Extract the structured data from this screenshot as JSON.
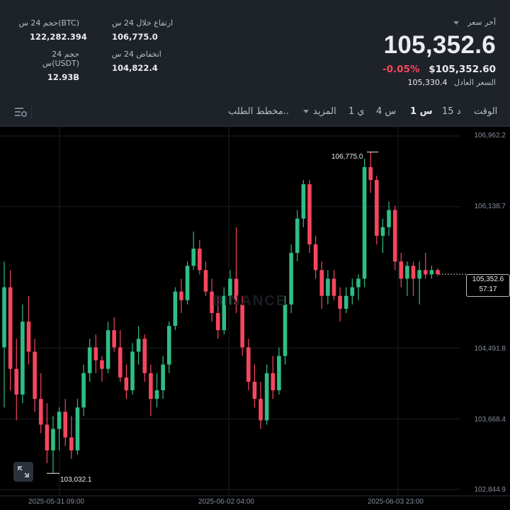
{
  "header": {
    "stats": [
      {
        "id": "high",
        "label": "ارتفاع خلال 24 س",
        "value": "106,775.0"
      },
      {
        "id": "vol_btc",
        "label": "حجم 24 س(BTC)",
        "value": "122,282.394"
      },
      {
        "id": "low",
        "label": "انخفاض 24 س",
        "value": "104,822.4"
      },
      {
        "id": "vol_usdt",
        "label": "حجم 24 س(USDT)",
        "value": "12.93B"
      }
    ],
    "last_price_label": "آخر سعر",
    "last_price": "105,352.6",
    "change_pct": "-0.05%",
    "usd_price": "$105,352.60",
    "fair_label": "السعر العادل",
    "fair_price": "105,330.4"
  },
  "tabs": {
    "time": "الوقت",
    "m15": "15 د",
    "h1": "1 س",
    "h4": "4 س",
    "d1": "1 ي",
    "more": "المزيد",
    "depth": "مخطط الطلب.."
  },
  "colors": {
    "up": "#2ebd85",
    "down": "#f6465d",
    "bg": "#000000",
    "panel": "#1e2329",
    "grid": "#1c1f24"
  },
  "chart_data": {
    "type": "candlestick",
    "y_ticks": [
      "106,962.2",
      "106,138.7",
      "104,491.8",
      "103,668.4",
      "102,844.9"
    ],
    "y_tick_values": [
      106962.2,
      106138.7,
      104491.8,
      103668.4,
      102844.9
    ],
    "x_ticks": [
      "2025-05-31 09:00",
      "2025-06-02 04:00",
      "2025-06-03 23:00"
    ],
    "current_price": "105,352.6",
    "countdown": "57:17",
    "high_marker": "106,775.0",
    "low_marker": "103,032.1",
    "watermark": "BINANCE",
    "candles": [
      {
        "o": 104500,
        "h": 105500,
        "l": 103800,
        "c": 105200
      },
      {
        "o": 105200,
        "h": 105400,
        "l": 104000,
        "c": 104250
      },
      {
        "o": 104250,
        "h": 104600,
        "l": 103650,
        "c": 103950
      },
      {
        "o": 103950,
        "h": 105000,
        "l": 103850,
        "c": 104800
      },
      {
        "o": 104800,
        "h": 105100,
        "l": 104300,
        "c": 104450
      },
      {
        "o": 104450,
        "h": 104600,
        "l": 103750,
        "c": 103900
      },
      {
        "o": 103900,
        "h": 104200,
        "l": 103500,
        "c": 103600
      },
      {
        "o": 103600,
        "h": 103850,
        "l": 103150,
        "c": 103300
      },
      {
        "o": 103300,
        "h": 103700,
        "l": 103032,
        "c": 103550
      },
      {
        "o": 103550,
        "h": 103800,
        "l": 103300,
        "c": 103750
      },
      {
        "o": 103750,
        "h": 103900,
        "l": 103350,
        "c": 103450
      },
      {
        "o": 103450,
        "h": 103700,
        "l": 103200,
        "c": 103300
      },
      {
        "o": 103300,
        "h": 103900,
        "l": 103250,
        "c": 103800
      },
      {
        "o": 103800,
        "h": 104300,
        "l": 103700,
        "c": 104200
      },
      {
        "o": 104200,
        "h": 104600,
        "l": 104100,
        "c": 104500
      },
      {
        "o": 104500,
        "h": 104650,
        "l": 104200,
        "c": 104350
      },
      {
        "o": 104350,
        "h": 104400,
        "l": 104100,
        "c": 104250
      },
      {
        "o": 104250,
        "h": 104800,
        "l": 104200,
        "c": 104700
      },
      {
        "o": 104700,
        "h": 104850,
        "l": 104450,
        "c": 104500
      },
      {
        "o": 104500,
        "h": 104700,
        "l": 104100,
        "c": 104150
      },
      {
        "o": 104150,
        "h": 104300,
        "l": 103900,
        "c": 104000
      },
      {
        "o": 104000,
        "h": 104550,
        "l": 103950,
        "c": 104450
      },
      {
        "o": 104450,
        "h": 104750,
        "l": 104300,
        "c": 104600
      },
      {
        "o": 104600,
        "h": 104650,
        "l": 104100,
        "c": 104200
      },
      {
        "o": 104200,
        "h": 104300,
        "l": 103700,
        "c": 103900
      },
      {
        "o": 103900,
        "h": 104200,
        "l": 103800,
        "c": 104000
      },
      {
        "o": 104000,
        "h": 104400,
        "l": 103900,
        "c": 104300
      },
      {
        "o": 104300,
        "h": 104800,
        "l": 104200,
        "c": 104750
      },
      {
        "o": 104750,
        "h": 105200,
        "l": 104700,
        "c": 105150
      },
      {
        "o": 105150,
        "h": 105300,
        "l": 104900,
        "c": 105050
      },
      {
        "o": 105050,
        "h": 105500,
        "l": 105000,
        "c": 105450
      },
      {
        "o": 105450,
        "h": 105850,
        "l": 105400,
        "c": 105650
      },
      {
        "o": 105650,
        "h": 105750,
        "l": 105350,
        "c": 105400
      },
      {
        "o": 105400,
        "h": 105500,
        "l": 105100,
        "c": 105150
      },
      {
        "o": 105150,
        "h": 105300,
        "l": 104800,
        "c": 104900
      },
      {
        "o": 104900,
        "h": 105100,
        "l": 104600,
        "c": 104700
      },
      {
        "o": 104700,
        "h": 105200,
        "l": 104650,
        "c": 105100
      },
      {
        "o": 105100,
        "h": 105400,
        "l": 105000,
        "c": 105300
      },
      {
        "o": 105300,
        "h": 105900,
        "l": 104900,
        "c": 105000
      },
      {
        "o": 105000,
        "h": 105100,
        "l": 104400,
        "c": 104500
      },
      {
        "o": 104500,
        "h": 104600,
        "l": 104000,
        "c": 104100
      },
      {
        "o": 104100,
        "h": 104300,
        "l": 103800,
        "c": 103900
      },
      {
        "o": 103900,
        "h": 104100,
        "l": 103550,
        "c": 103650
      },
      {
        "o": 103650,
        "h": 104300,
        "l": 103600,
        "c": 104200
      },
      {
        "o": 104200,
        "h": 104400,
        "l": 103900,
        "c": 104000
      },
      {
        "o": 104000,
        "h": 104500,
        "l": 103950,
        "c": 104400
      },
      {
        "o": 104400,
        "h": 105100,
        "l": 104300,
        "c": 105000
      },
      {
        "o": 105000,
        "h": 105700,
        "l": 104900,
        "c": 105600
      },
      {
        "o": 105600,
        "h": 106100,
        "l": 105500,
        "c": 106000
      },
      {
        "o": 106000,
        "h": 106450,
        "l": 105900,
        "c": 106400
      },
      {
        "o": 106400,
        "h": 106450,
        "l": 105600,
        "c": 105700
      },
      {
        "o": 105700,
        "h": 105800,
        "l": 105300,
        "c": 105400
      },
      {
        "o": 105400,
        "h": 105500,
        "l": 104950,
        "c": 105100
      },
      {
        "o": 105100,
        "h": 105400,
        "l": 105000,
        "c": 105300
      },
      {
        "o": 105300,
        "h": 105400,
        "l": 105050,
        "c": 105100
      },
      {
        "o": 105100,
        "h": 105200,
        "l": 104800,
        "c": 104950
      },
      {
        "o": 104950,
        "h": 105200,
        "l": 104900,
        "c": 105100
      },
      {
        "o": 105100,
        "h": 105300,
        "l": 105000,
        "c": 105200
      },
      {
        "o": 105200,
        "h": 105350,
        "l": 105050,
        "c": 105300
      },
      {
        "o": 105300,
        "h": 106700,
        "l": 105200,
        "c": 106600
      },
      {
        "o": 106600,
        "h": 106775,
        "l": 106300,
        "c": 106450
      },
      {
        "o": 106450,
        "h": 106500,
        "l": 105700,
        "c": 105800
      },
      {
        "o": 105800,
        "h": 106000,
        "l": 105600,
        "c": 105900
      },
      {
        "o": 105900,
        "h": 106200,
        "l": 105800,
        "c": 106100
      },
      {
        "o": 106100,
        "h": 106150,
        "l": 105400,
        "c": 105500
      },
      {
        "o": 105500,
        "h": 105600,
        "l": 105200,
        "c": 105300
      },
      {
        "o": 105300,
        "h": 105500,
        "l": 105100,
        "c": 105450
      },
      {
        "o": 105450,
        "h": 105500,
        "l": 105100,
        "c": 105300
      },
      {
        "o": 105300,
        "h": 105500,
        "l": 105000,
        "c": 105400
      },
      {
        "o": 105400,
        "h": 105600,
        "l": 105300,
        "c": 105350
      },
      {
        "o": 105350,
        "h": 105450,
        "l": 105300,
        "c": 105400
      },
      {
        "o": 105400,
        "h": 105420,
        "l": 105330,
        "c": 105352.6
      }
    ]
  }
}
